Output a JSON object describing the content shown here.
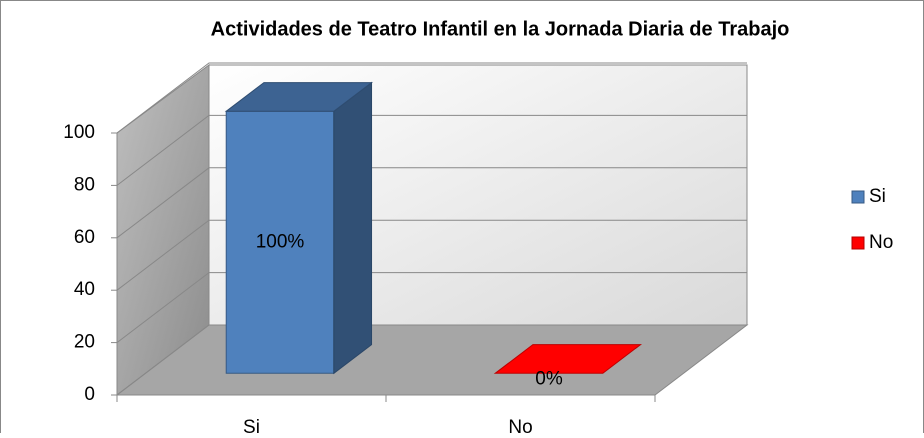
{
  "chart_data": {
    "type": "bar3d",
    "title": "Actividades de Teatro Infantil en la Jornada Diaria de Trabajo",
    "categories": [
      "Si",
      "No"
    ],
    "values": [
      100,
      0
    ],
    "value_labels": [
      "100%",
      "0%"
    ],
    "colors": [
      "#4f81bd",
      "#ff0000"
    ],
    "ylim": [
      0,
      100
    ],
    "yticks": [
      0,
      20,
      40,
      60,
      80,
      100
    ],
    "grid": true,
    "legend": "right"
  }
}
